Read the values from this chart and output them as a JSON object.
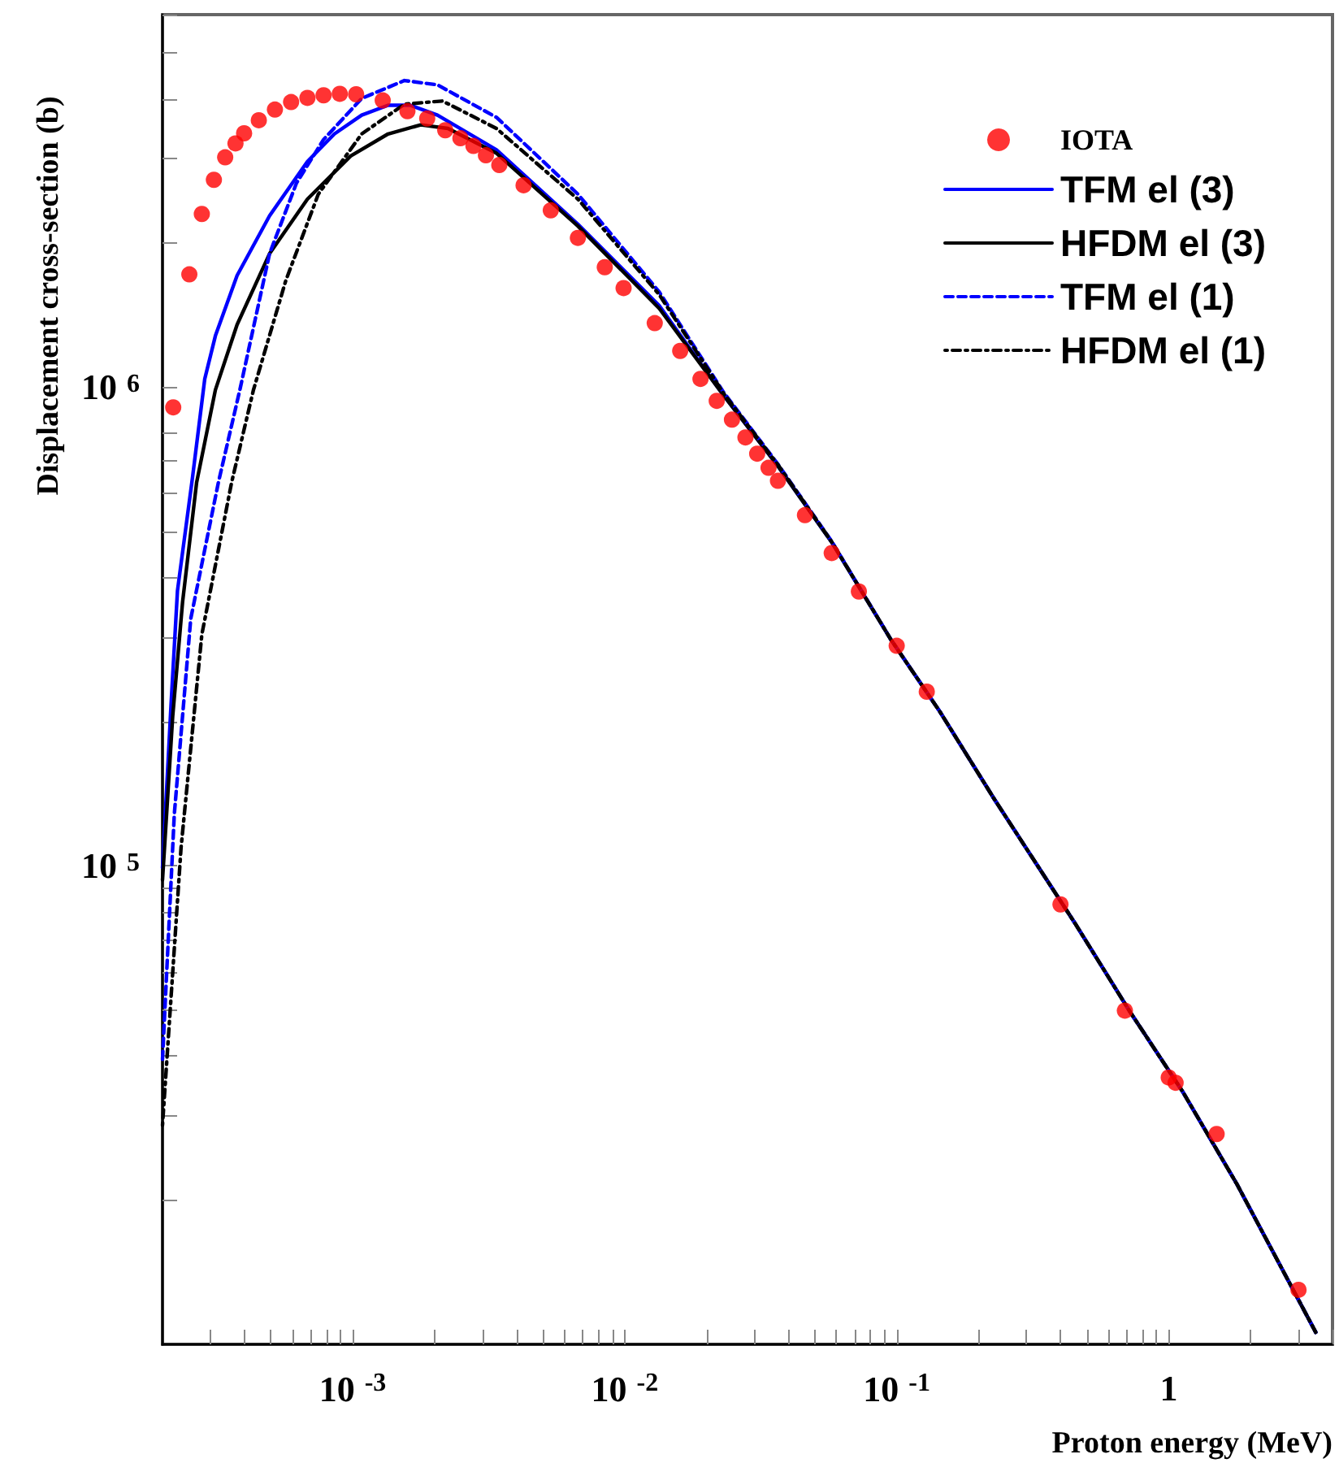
{
  "chart_data": {
    "type": "line",
    "xlabel": "Proton energy (MeV)",
    "ylabel": "Displacement cross-section (b)",
    "log": "xy",
    "grid": false,
    "legend": "top right",
    "xlim": [
      0.0002,
      4
    ],
    "ylim": [
      10000,
      6000000
    ],
    "xticks": [
      {
        "value": 0.0003,
        "label": null
      },
      {
        "value": 0.0004,
        "label": null
      },
      {
        "value": 0.0005,
        "label": null
      },
      {
        "value": 0.0006,
        "label": null
      },
      {
        "value": 0.0007,
        "label": null
      },
      {
        "value": 0.0008,
        "label": null
      },
      {
        "value": 0.0009,
        "label": null
      },
      {
        "value": 0.001,
        "label": "10$^{-3}$"
      },
      {
        "value": 0.002,
        "label": null
      },
      {
        "value": 0.003,
        "label": null
      },
      {
        "value": 0.004,
        "label": null
      },
      {
        "value": 0.005,
        "label": null
      },
      {
        "value": 0.006,
        "label": null
      },
      {
        "value": 0.007,
        "label": null
      },
      {
        "value": 0.008,
        "label": null
      },
      {
        "value": 0.009,
        "label": null
      },
      {
        "value": 0.01,
        "label": "10$^{-2}$"
      },
      {
        "value": 0.02,
        "label": null
      },
      {
        "value": 0.03,
        "label": null
      },
      {
        "value": 0.04,
        "label": null
      },
      {
        "value": 0.05,
        "label": null
      },
      {
        "value": 0.06,
        "label": null
      },
      {
        "value": 0.07,
        "label": null
      },
      {
        "value": 0.08,
        "label": null
      },
      {
        "value": 0.09,
        "label": null
      },
      {
        "value": 0.1,
        "label": "10$^{-1}$"
      },
      {
        "value": 0.2,
        "label": null
      },
      {
        "value": 0.3,
        "label": null
      },
      {
        "value": 0.4,
        "label": null
      },
      {
        "value": 0.5,
        "label": null
      },
      {
        "value": 0.6,
        "label": null
      },
      {
        "value": 0.7,
        "label": null
      },
      {
        "value": 0.8,
        "label": null
      },
      {
        "value": 0.9,
        "label": null
      },
      1,
      {
        "value": 2,
        "label": null
      },
      {
        "value": 3,
        "label": null
      },
      {
        "value": 4,
        "label": null
      }
    ],
    "yticks": [
      {
        "value": 20000,
        "label": null
      },
      {
        "value": 30000,
        "label": null
      },
      {
        "value": 40000,
        "label": null
      },
      {
        "value": 50000,
        "label": null
      },
      {
        "value": 60000,
        "label": null
      },
      {
        "value": 70000,
        "label": null
      },
      {
        "value": 80000,
        "label": null
      },
      {
        "value": 90000,
        "label": null
      },
      {
        "value": 100000,
        "label": "10$^{5}$"
      },
      {
        "value": 200000,
        "label": null
      },
      {
        "value": 300000,
        "label": null
      },
      {
        "value": 400000,
        "label": null
      },
      {
        "value": 500000,
        "label": null
      },
      {
        "value": 600000,
        "label": null
      },
      {
        "value": 700000,
        "label": null
      },
      {
        "value": 800000,
        "label": null
      },
      {
        "value": 1000000,
        "label": "10$^{6}$"
      },
      {
        "value": 2000000,
        "label": null
      },
      {
        "value": 3000000,
        "label": null
      },
      {
        "value": 4000000,
        "label": null
      },
      {
        "value": 5000000,
        "label": null
      },
      {
        "value": 6000000,
        "label": null
      }
    ],
    "series": [
      {
        "name": "IOTA",
        "type": "scatter",
        "marker": "circle",
        "color": "#ff0000",
        "x": [
          0.000219,
          0.000251,
          0.000279,
          0.000309,
          0.00034,
          0.000371,
          0.000399,
          0.000452,
          0.000518,
          0.000594,
          0.000682,
          0.000782,
          0.000897,
          0.00103,
          0.00129,
          0.00159,
          0.00188,
          0.00219,
          0.00249,
          0.00278,
          0.00309,
          0.00346,
          0.00425,
          0.00535,
          0.00673,
          0.00845,
          0.00991,
          0.0129,
          0.016,
          0.019,
          0.0218,
          0.0248,
          0.0278,
          0.0307,
          0.0338,
          0.0366,
          0.046,
          0.0577,
          0.0726,
          0.1,
          0.129,
          0.4,
          0.69,
          1.0,
          1.06,
          1.5,
          3.0
        ],
        "values": [
          907000,
          1720000,
          2300000,
          2710000,
          3020000,
          3230000,
          3390000,
          3610000,
          3800000,
          3940000,
          4020000,
          4070000,
          4100000,
          4090000,
          3970000,
          3770000,
          3640000,
          3440000,
          3310000,
          3190000,
          3050000,
          2910000,
          2640000,
          2340000,
          2050000,
          1780000,
          1610000,
          1360000,
          1190000,
          1040000,
          936000,
          855000,
          785000,
          726000,
          678000,
          637000,
          540000,
          450000,
          374000,
          288000,
          231000,
          83000,
          49800,
          36100,
          35200,
          27500,
          13000
        ]
      },
      {
        "name": "TFM el (3)",
        "marker": "none",
        "line_style": "solid",
        "color": "#0000ff",
        "x": [
          0.0002,
          0.000215,
          0.000227,
          0.000258,
          0.000286,
          0.000313,
          0.000376,
          0.000495,
          0.000682,
          0.000857,
          0.00108,
          0.00135,
          0.00163,
          0.00205,
          0.00338,
          0.00673,
          0.0134,
          0.0231,
          0.0366,
          0.0577,
          0.0955,
          0.144,
          0.228,
          0.453,
          0.716,
          1.13,
          1.79,
          3.47
        ],
        "values": [
          99000,
          217000,
          375000,
          649000,
          1040000,
          1280000,
          1710000,
          2280000,
          2960000,
          3380000,
          3700000,
          3880000,
          3880000,
          3700000,
          3130000,
          2190000,
          1480000,
          961000,
          684000,
          474000,
          296000,
          210000,
          138000,
          75700,
          49800,
          33600,
          21500,
          10600
        ]
      },
      {
        "name": "HFDM el (3)",
        "marker": "none",
        "line_style": "solid",
        "color": "#000000",
        "x": [
          0.0002,
          0.000218,
          0.000237,
          0.000267,
          0.000313,
          0.000376,
          0.000495,
          0.000682,
          0.000984,
          0.00135,
          0.00178,
          0.00224,
          0.00338,
          0.00673,
          0.0134,
          0.0231,
          0.0366,
          0.0577,
          0.0955,
          0.144,
          0.228,
          0.453,
          0.716,
          1.13,
          1.79,
          3.47
        ],
        "values": [
          93400,
          205000,
          355000,
          632000,
          987000,
          1350000,
          1900000,
          2470000,
          3040000,
          3380000,
          3530000,
          3470000,
          3080000,
          2170000,
          1460000,
          961000,
          684000,
          474000,
          296000,
          210000,
          138000,
          75700,
          49800,
          33600,
          21500,
          10600
        ]
      },
      {
        "name": "TFM el (1)",
        "marker": "none",
        "line_style": "dashed",
        "color": "#0000ff",
        "x": [
          0.0002,
          0.000221,
          0.000254,
          0.000321,
          0.000385,
          0.000495,
          0.000622,
          0.000782,
          0.00108,
          0.00155,
          0.00205,
          0.00338,
          0.00673,
          0.0134,
          0.0231,
          0.0366,
          0.0577,
          0.0955,
          0.144,
          0.228,
          0.453,
          0.716,
          1.13,
          1.79,
          3.47
        ],
        "values": [
          39400,
          128000,
          328000,
          632000,
          987000,
          1900000,
          2670000,
          3290000,
          4010000,
          4370000,
          4280000,
          3660000,
          2530000,
          1580000,
          975000,
          690000,
          476000,
          296000,
          210000,
          138000,
          75700,
          49800,
          33600,
          21500,
          10600
        ]
      },
      {
        "name": "HFDM el (1)",
        "marker": "none",
        "line_style": "dotted",
        "color": "#000000",
        "x": [
          0.0002,
          0.000234,
          0.000279,
          0.000359,
          0.000432,
          0.000568,
          0.000748,
          0.00108,
          0.00155,
          0.00214,
          0.00338,
          0.00673,
          0.0134,
          0.0231,
          0.0366,
          0.0577,
          0.0955,
          0.144,
          0.228,
          0.453,
          0.716,
          1.13,
          1.79,
          3.47
        ],
        "values": [
          28700,
          109000,
          304000,
          632000,
          987000,
          1670000,
          2530000,
          3380000,
          3900000,
          3960000,
          3470000,
          2470000,
          1560000,
          970000,
          688000,
          475000,
          296000,
          210000,
          138000,
          75700,
          49800,
          33600,
          21500,
          10600
        ]
      }
    ]
  }
}
